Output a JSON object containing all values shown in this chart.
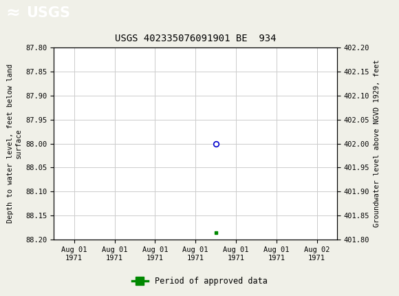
{
  "title": "USGS 402335076091901 BE  934",
  "header_color": "#1a6b3c",
  "background_color": "#f0f0e8",
  "plot_bg_color": "#ffffff",
  "ylabel_left": "Depth to water level, feet below land\nsurface",
  "ylabel_right": "Groundwater level above NGVD 1929, feet",
  "ylim_left_top": 87.8,
  "ylim_left_bottom": 88.2,
  "ylim_right_top": 402.2,
  "ylim_right_bottom": 401.8,
  "yticks_left": [
    87.8,
    87.85,
    87.9,
    87.95,
    88.0,
    88.05,
    88.1,
    88.15,
    88.2
  ],
  "yticks_right": [
    402.2,
    402.15,
    402.1,
    402.05,
    402.0,
    401.95,
    401.9,
    401.85,
    401.8
  ],
  "x_ticks": [
    0,
    1,
    2,
    3,
    4,
    5,
    6
  ],
  "x_tick_labels": [
    "Aug 01\n1971",
    "Aug 01\n1971",
    "Aug 01\n1971",
    "Aug 01\n1971",
    "Aug 01\n1971",
    "Aug 01\n1971",
    "Aug 02\n1971"
  ],
  "data_point_x": 3.5,
  "data_point_y": 88.0,
  "approved_point_x": 3.5,
  "approved_point_y": 88.185,
  "legend_label": "Period of approved data",
  "legend_color": "#008800",
  "marker_color_face": "#ffffff",
  "marker_color_edge": "#0000cc",
  "grid_color": "#cccccc",
  "font_family": "monospace",
  "title_fontsize": 10,
  "tick_fontsize": 7.5,
  "label_fontsize": 7.5,
  "legend_fontsize": 8.5
}
